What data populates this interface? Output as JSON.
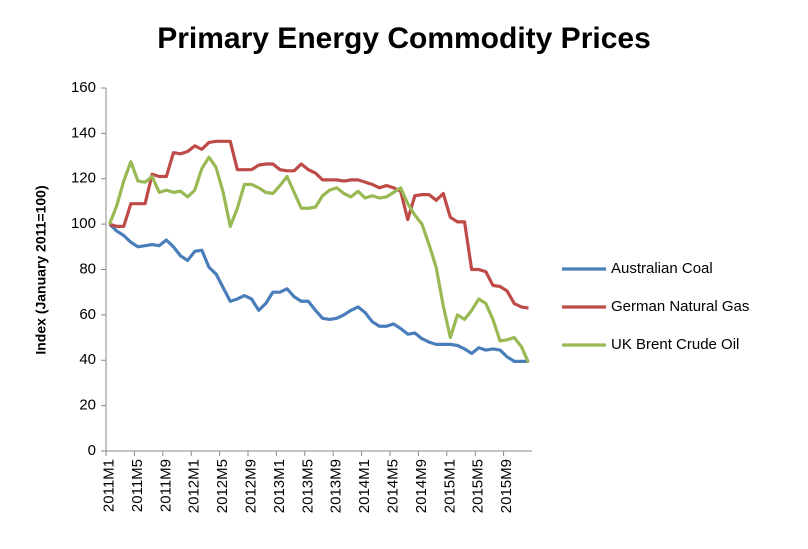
{
  "chart_data": {
    "type": "line",
    "title": "Primary Energy Commodity Prices",
    "y_label": "Index (January 2011=100)",
    "categories": [
      "2011M1",
      null,
      null,
      null,
      "2011M5",
      null,
      null,
      null,
      "2011M9",
      null,
      null,
      null,
      "2012M1",
      null,
      null,
      null,
      "2012M5",
      null,
      null,
      null,
      "2012M9",
      null,
      null,
      null,
      "2013M1",
      null,
      null,
      null,
      "2013M5",
      null,
      null,
      null,
      "2013M9",
      null,
      null,
      null,
      "2014M1",
      null,
      null,
      null,
      "2014M5",
      null,
      null,
      null,
      "2014M9",
      null,
      null,
      null,
      "2015M1",
      null,
      null,
      null,
      "2015M5",
      null,
      null,
      null,
      "2015M9",
      null,
      null,
      null
    ],
    "series": [
      {
        "name": "Australian Coal",
        "color": "#4a7ebb",
        "values": [
          100,
          97,
          95,
          92,
          90,
          90.5,
          91,
          90.5,
          93,
          90,
          86,
          84,
          88,
          88.5,
          81,
          78,
          72,
          66,
          67,
          68.5,
          67,
          62,
          65,
          70,
          70,
          71.5,
          68,
          66,
          66,
          62,
          58.5,
          58,
          58.5,
          60,
          62,
          63.5,
          61,
          57,
          55,
          55,
          56,
          54,
          51.5,
          52,
          49.5,
          48,
          47,
          47,
          47,
          46.5,
          45,
          43,
          45.5,
          44.5,
          45,
          44.5,
          41.5,
          39.5,
          39.5,
          39.5
        ]
      },
      {
        "name": "German Natural Gas",
        "color": "#be4b48",
        "values": [
          100,
          99,
          99,
          109,
          109,
          109,
          122,
          121,
          121,
          131.5,
          131,
          132,
          134.5,
          133,
          136,
          136.5,
          136.5,
          136.5,
          124,
          124,
          124,
          126,
          126.5,
          126.5,
          124,
          123.5,
          123.5,
          126.5,
          124,
          122.5,
          119.5,
          119.5,
          119.5,
          119,
          119.5,
          119.5,
          118.5,
          117.5,
          116,
          117,
          116,
          114.5,
          102,
          112.5,
          113,
          113,
          110.5,
          113.5,
          103,
          101,
          101,
          80,
          80,
          79,
          73,
          72.5,
          70.5,
          65,
          63.5,
          63
        ]
      },
      {
        "name": "UK Brent Crude Oil",
        "color": "#98b954",
        "values": [
          100,
          108,
          119,
          127.5,
          119,
          118.5,
          121,
          114,
          115,
          114,
          114.5,
          112,
          115,
          124.5,
          129.5,
          125,
          114,
          99,
          107,
          117.5,
          117.5,
          116,
          114,
          113.5,
          117,
          121,
          114,
          107,
          107,
          107.5,
          112.5,
          115,
          116,
          113.5,
          112,
          114.5,
          111.5,
          112.5,
          111.5,
          112,
          114,
          116,
          109,
          104,
          100,
          91,
          81,
          64,
          50,
          60,
          58,
          62,
          67,
          65,
          58,
          48.5,
          49,
          50,
          46,
          39
        ]
      }
    ],
    "ylim": [
      0,
      160
    ],
    "yticks": [
      0,
      20,
      40,
      60,
      80,
      100,
      120,
      140,
      160
    ],
    "legend": "right"
  }
}
